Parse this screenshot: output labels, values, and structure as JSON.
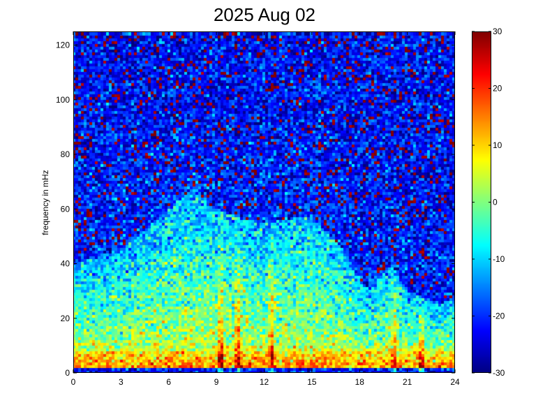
{
  "chart_data": {
    "type": "heatmap",
    "title": "2025 Aug 02",
    "xlabel": "",
    "ylabel": "frequency in mHz",
    "xlim": [
      0,
      24
    ],
    "ylim": [
      0,
      125
    ],
    "x_ticks": [
      0,
      3,
      6,
      9,
      12,
      15,
      18,
      21,
      24
    ],
    "y_ticks": [
      0,
      20,
      40,
      60,
      80,
      100,
      120
    ],
    "colorbar": {
      "clim": [
        -30,
        30
      ],
      "ticks": [
        -30,
        -20,
        -10,
        0,
        10,
        20,
        30
      ],
      "colormap": "jet"
    },
    "colormap_stops": [
      "#00008f",
      "#0000ff",
      "#00ffff",
      "#ffff00",
      "#ff0000",
      "#800000"
    ],
    "features": {
      "low_freq_band_level": 10,
      "background_level": -20,
      "broadband_upper_mhz_by_hour": [
        [
          0,
          40
        ],
        [
          3,
          45
        ],
        [
          6,
          60
        ],
        [
          7.5,
          68
        ],
        [
          9,
          60
        ],
        [
          12,
          55
        ],
        [
          15,
          58
        ],
        [
          17,
          45
        ],
        [
          18.5,
          30
        ],
        [
          20,
          40
        ],
        [
          21,
          30
        ],
        [
          23,
          25
        ],
        [
          24,
          28
        ]
      ],
      "vertical_streaks_hours": [
        9.3,
        10.4,
        12.5,
        20.2,
        21.9
      ]
    }
  }
}
